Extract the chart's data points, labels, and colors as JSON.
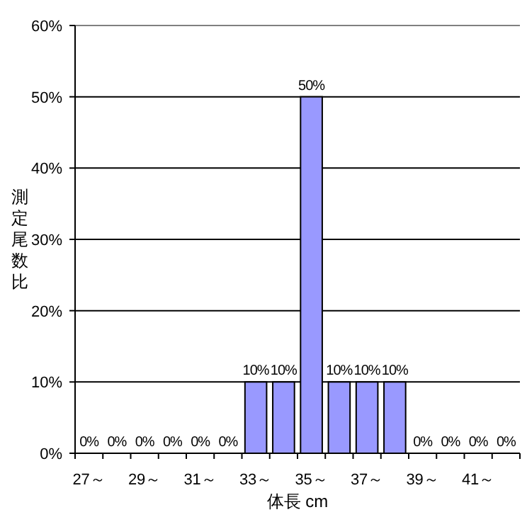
{
  "chart_data": {
    "type": "bar",
    "xlabel": "体長 cm",
    "ylabel": "測定尾数比",
    "categories": [
      "27～",
      null,
      "29～",
      null,
      "31～",
      null,
      "33～",
      null,
      "35～",
      null,
      "37～",
      null,
      "39～",
      null,
      "41～",
      null
    ],
    "values": [
      0,
      0,
      0,
      0,
      0,
      0,
      10,
      10,
      50,
      10,
      10,
      10,
      0,
      0,
      0,
      0
    ],
    "value_labels": [
      "0%",
      "0%",
      "0%",
      "0%",
      "0%",
      "0%",
      "10%",
      "10%",
      "50%",
      "10%",
      "10%",
      "10%",
      "0%",
      "0%",
      "0%",
      "0%"
    ],
    "color": "#9999ff",
    "ylim": [
      0,
      60
    ],
    "yticks": [
      {
        "value": 0,
        "label": "0%"
      },
      {
        "value": 10,
        "label": "10%"
      },
      {
        "value": 20,
        "label": "20%"
      },
      {
        "value": 30,
        "label": "30%"
      },
      {
        "value": 40,
        "label": "40%"
      },
      {
        "value": 50,
        "label": "50%"
      },
      {
        "value": 60,
        "label": "60%"
      }
    ],
    "grid": "y"
  }
}
